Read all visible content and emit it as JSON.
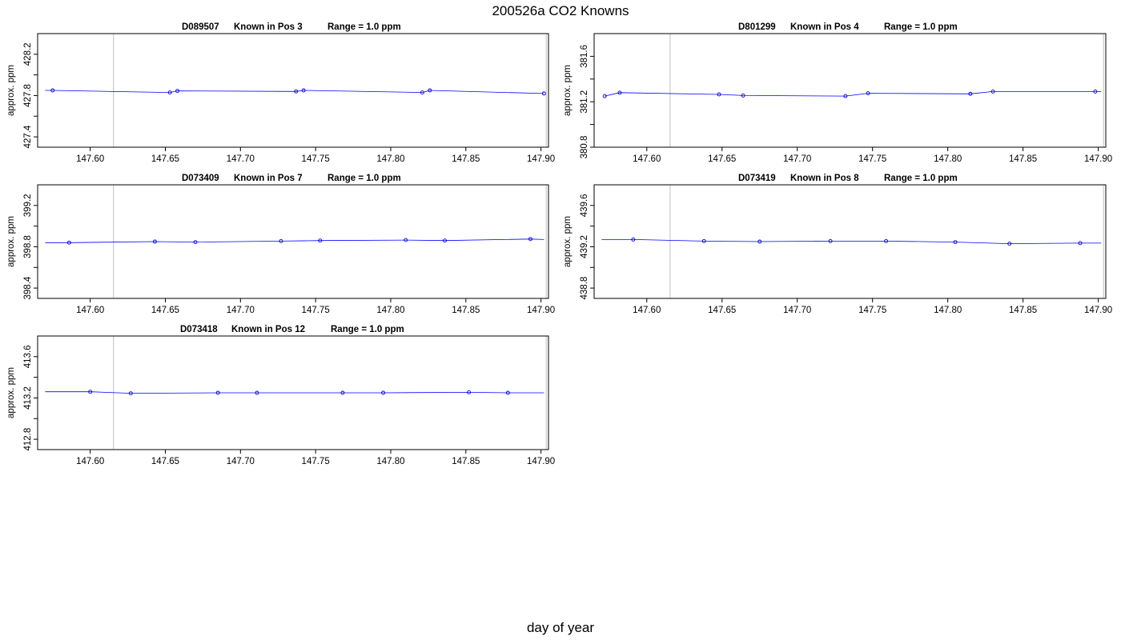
{
  "title": "200526a   CO2 Knowns",
  "xlabel": "day of year",
  "chart_data": [
    {
      "type": "line",
      "panel_title_parts": [
        "D089507",
        "Known in Pos 3",
        "Range = 1.0 ppm"
      ],
      "ylabel": "approx. ppm",
      "xlim": [
        147.565,
        147.905
      ],
      "ylim": [
        427.3,
        428.4
      ],
      "x_ticks": [
        147.6,
        147.65,
        147.7,
        147.75,
        147.8,
        147.85,
        147.9
      ],
      "x_tick_labels": [
        "147.60",
        "147.65",
        "147.70",
        "147.75",
        "147.80",
        "147.85",
        "147.90"
      ],
      "y_ticks": [
        427.4,
        427.8,
        428.2
      ],
      "y_minor_ticks": [
        427.6,
        428.0
      ],
      "y_tick_labels": [
        "427.4",
        "427.8",
        "428.2"
      ],
      "vlines": [
        147.6155,
        147.9035
      ],
      "line_x": [
        147.57,
        147.575,
        147.653,
        147.658,
        147.737,
        147.742,
        147.821,
        147.826,
        147.902
      ],
      "line_y": [
        427.85,
        427.85,
        427.83,
        427.845,
        427.84,
        427.85,
        427.83,
        427.85,
        427.82
      ],
      "points_x": [
        147.575,
        147.653,
        147.658,
        147.737,
        147.742,
        147.821,
        147.826,
        147.902
      ],
      "points_y": [
        427.85,
        427.83,
        427.845,
        427.84,
        427.85,
        427.83,
        427.85,
        427.82
      ]
    },
    {
      "type": "line",
      "panel_title_parts": [
        "D801299",
        "Known in Pos 4",
        "Range = 1.0 ppm"
      ],
      "ylabel": "approx. ppm",
      "xlim": [
        147.565,
        147.905
      ],
      "ylim": [
        380.8,
        381.8
      ],
      "x_ticks": [
        147.6,
        147.65,
        147.7,
        147.75,
        147.8,
        147.85,
        147.9
      ],
      "x_tick_labels": [
        "147.60",
        "147.65",
        "147.70",
        "147.75",
        "147.80",
        "147.85",
        "147.90"
      ],
      "y_ticks": [
        380.8,
        381.2,
        381.6
      ],
      "y_minor_ticks": [
        381.0,
        381.4
      ],
      "y_tick_labels": [
        "380.8",
        "381.2",
        "381.6"
      ],
      "vlines": [
        147.6155,
        147.9035
      ],
      "line_x": [
        147.572,
        147.582,
        147.648,
        147.664,
        147.732,
        147.747,
        147.815,
        147.83,
        147.898,
        147.902
      ],
      "line_y": [
        381.25,
        381.28,
        381.265,
        381.255,
        381.25,
        381.275,
        381.27,
        381.29,
        381.29,
        381.29
      ],
      "points_x": [
        147.572,
        147.582,
        147.648,
        147.664,
        147.732,
        147.747,
        147.815,
        147.83,
        147.898
      ],
      "points_y": [
        381.25,
        381.28,
        381.265,
        381.255,
        381.25,
        381.275,
        381.27,
        381.29,
        381.29
      ]
    },
    {
      "type": "line",
      "panel_title_parts": [
        "D073409",
        "Known in Pos 7",
        "Range = 1.0 ppm"
      ],
      "ylabel": "approx. ppm",
      "xlim": [
        147.565,
        147.905
      ],
      "ylim": [
        398.3,
        399.4
      ],
      "x_ticks": [
        147.6,
        147.65,
        147.7,
        147.75,
        147.8,
        147.85,
        147.9
      ],
      "x_tick_labels": [
        "147.60",
        "147.65",
        "147.70",
        "147.75",
        "147.80",
        "147.85",
        "147.90"
      ],
      "y_ticks": [
        398.4,
        398.8,
        399.2
      ],
      "y_minor_ticks": [
        398.6,
        399.0
      ],
      "y_tick_labels": [
        "398.4",
        "398.8",
        "399.2"
      ],
      "vlines": [
        147.6155,
        147.9035
      ],
      "line_x": [
        147.57,
        147.586,
        147.643,
        147.67,
        147.727,
        147.753,
        147.81,
        147.836,
        147.893,
        147.902
      ],
      "line_y": [
        398.84,
        398.84,
        398.85,
        398.845,
        398.855,
        398.86,
        398.865,
        398.86,
        398.875,
        398.87
      ],
      "points_x": [
        147.586,
        147.643,
        147.67,
        147.727,
        147.753,
        147.81,
        147.836,
        147.893
      ],
      "points_y": [
        398.84,
        398.85,
        398.845,
        398.855,
        398.86,
        398.865,
        398.86,
        398.875
      ]
    },
    {
      "type": "line",
      "panel_title_parts": [
        "D073419",
        "Known in Pos 8",
        "Range = 1.0 ppm"
      ],
      "ylabel": "approx. ppm",
      "xlim": [
        147.565,
        147.905
      ],
      "ylim": [
        438.7,
        439.8
      ],
      "x_ticks": [
        147.6,
        147.65,
        147.7,
        147.75,
        147.8,
        147.85,
        147.9
      ],
      "x_tick_labels": [
        "147.60",
        "147.65",
        "147.70",
        "147.75",
        "147.80",
        "147.85",
        "147.90"
      ],
      "y_ticks": [
        438.8,
        439.2,
        439.6
      ],
      "y_minor_ticks": [
        439.0,
        439.4
      ],
      "y_tick_labels": [
        "438.8",
        "439.2",
        "439.6"
      ],
      "vlines": [
        147.6155,
        147.9035
      ],
      "line_x": [
        147.57,
        147.591,
        147.638,
        147.675,
        147.722,
        147.759,
        147.805,
        147.841,
        147.888,
        147.902
      ],
      "line_y": [
        439.27,
        439.27,
        439.255,
        439.25,
        439.255,
        439.255,
        439.245,
        439.23,
        439.235,
        439.235
      ],
      "points_x": [
        147.591,
        147.638,
        147.675,
        147.722,
        147.759,
        147.805,
        147.841,
        147.888
      ],
      "points_y": [
        439.27,
        439.255,
        439.25,
        439.255,
        439.255,
        439.245,
        439.23,
        439.235
      ]
    },
    {
      "type": "line",
      "panel_title_parts": [
        "D073418",
        "Known in Pos 12",
        "Range = 1.0 ppm"
      ],
      "ylabel": "approx. ppm",
      "xlim": [
        147.565,
        147.905
      ],
      "ylim": [
        412.7,
        413.8
      ],
      "x_ticks": [
        147.6,
        147.65,
        147.7,
        147.75,
        147.8,
        147.85,
        147.9
      ],
      "x_tick_labels": [
        "147.60",
        "147.65",
        "147.70",
        "147.75",
        "147.80",
        "147.85",
        "147.90"
      ],
      "y_ticks": [
        412.8,
        413.2,
        413.6
      ],
      "y_minor_ticks": [
        413.0,
        413.4
      ],
      "y_tick_labels": [
        "412.8",
        "413.2",
        "413.6"
      ],
      "vlines": [
        147.6155,
        147.9035
      ],
      "line_x": [
        147.57,
        147.6,
        147.627,
        147.685,
        147.711,
        147.768,
        147.795,
        147.852,
        147.878,
        147.902
      ],
      "line_y": [
        413.26,
        413.26,
        413.245,
        413.25,
        413.25,
        413.25,
        413.25,
        413.255,
        413.25,
        413.25
      ],
      "points_x": [
        147.6,
        147.627,
        147.685,
        147.711,
        147.768,
        147.795,
        147.852,
        147.878
      ],
      "points_y": [
        413.26,
        413.245,
        413.25,
        413.25,
        413.25,
        413.25,
        413.255,
        413.25
      ]
    }
  ],
  "colors": {
    "series_line": "#0000ff",
    "marker_stroke": "#0000cc",
    "vline": "#c0c0c0",
    "frame": "#000000"
  }
}
